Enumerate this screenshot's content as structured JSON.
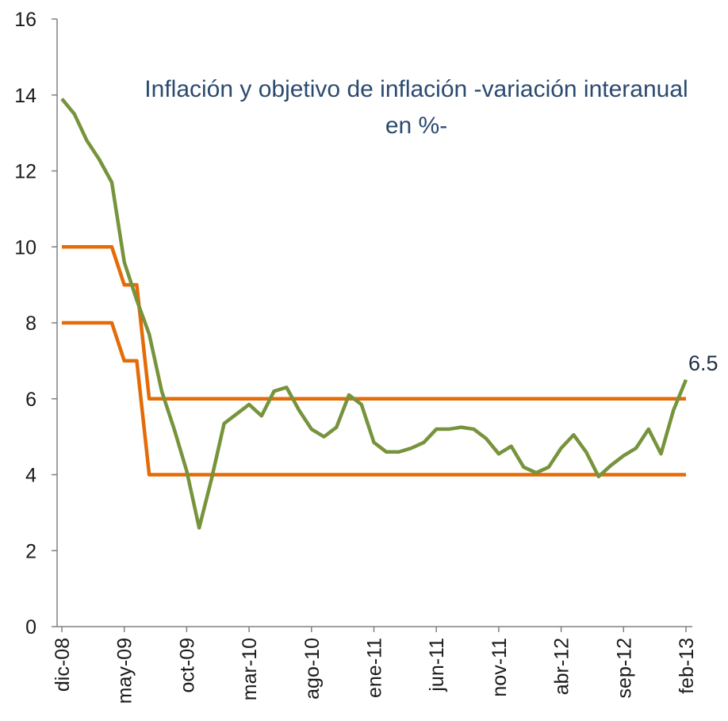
{
  "chart_data": {
    "type": "line",
    "title": "Inflación y objetivo de inflación -variación interanual en %-",
    "categories": [
      "dic-08",
      null,
      null,
      null,
      null,
      "may-09",
      null,
      null,
      null,
      null,
      "oct-09",
      null,
      null,
      null,
      null,
      "mar-10",
      null,
      null,
      null,
      null,
      "ago-10",
      null,
      null,
      null,
      null,
      "ene-11",
      null,
      null,
      null,
      null,
      "jun-11",
      null,
      null,
      null,
      null,
      "nov-11",
      null,
      null,
      null,
      null,
      "abr-12",
      null,
      null,
      null,
      null,
      "sep-12",
      null,
      null,
      null,
      null,
      "feb-13"
    ],
    "series": [
      {
        "color": "#77933c",
        "values": [
          13.9,
          13.5,
          12.8,
          12.3,
          11.7,
          9.6,
          8.6,
          7.7,
          6.2,
          5.2,
          4.1,
          2.6,
          3.9,
          5.35,
          5.6,
          5.85,
          5.55,
          6.2,
          6.3,
          5.7,
          5.2,
          5.0,
          5.25,
          6.1,
          5.85,
          4.85,
          4.6,
          4.6,
          4.7,
          4.85,
          5.2,
          5.2,
          5.25,
          5.2,
          4.95,
          4.55,
          4.75,
          4.2,
          4.05,
          4.2,
          4.7,
          5.05,
          4.6,
          3.95,
          4.25,
          4.5,
          4.7,
          5.2,
          4.55,
          5.7,
          6.5
        ]
      },
      {
        "color": "#e36c09",
        "values": [
          10,
          10,
          10,
          10,
          10,
          9,
          9,
          6,
          6,
          6,
          6,
          6,
          6,
          6,
          6,
          6,
          6,
          6,
          6,
          6,
          6,
          6,
          6,
          6,
          6,
          6,
          6,
          6,
          6,
          6,
          6,
          6,
          6,
          6,
          6,
          6,
          6,
          6,
          6,
          6,
          6,
          6,
          6,
          6,
          6,
          6,
          6,
          6,
          6,
          6,
          6
        ]
      },
      {
        "color": "#e36c09",
        "values": [
          8,
          8,
          8,
          8,
          8,
          7,
          7,
          4,
          4,
          4,
          4,
          4,
          4,
          4,
          4,
          4,
          4,
          4,
          4,
          4,
          4,
          4,
          4,
          4,
          4,
          4,
          4,
          4,
          4,
          4,
          4,
          4,
          4,
          4,
          4,
          4,
          4,
          4,
          4,
          4,
          4,
          4,
          4,
          4,
          4,
          4,
          4,
          4,
          4,
          4,
          4
        ]
      }
    ],
    "ylim": [
      0,
      16
    ],
    "yticks": [
      0,
      2,
      4,
      6,
      8,
      10,
      12,
      14,
      16
    ],
    "grid": false
  }
}
